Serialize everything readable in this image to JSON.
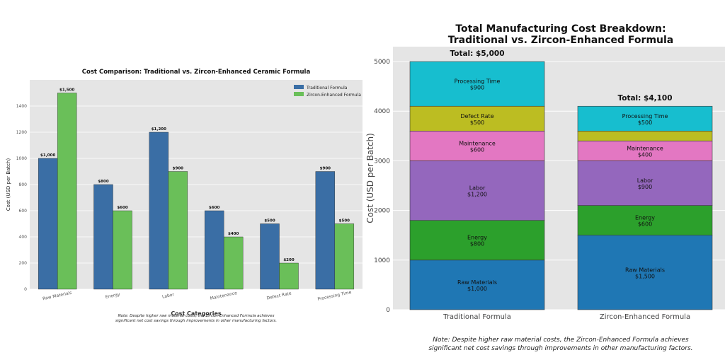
{
  "chart_data": [
    {
      "type": "bar",
      "title": "Cost Comparison: Traditional vs. Zircon-Enhanced Ceramic Formula",
      "xlabel": "Cost Categories",
      "ylabel": "Cost (USD per Batch)",
      "ylim": [
        0,
        1600
      ],
      "yticks": [
        0,
        200,
        400,
        600,
        800,
        1000,
        1200,
        1400
      ],
      "grid": true,
      "legend_position": "top-right",
      "categories": [
        "Raw Materials",
        "Energy",
        "Labor",
        "Maintenance",
        "Defect Rate",
        "Processing Time"
      ],
      "series": [
        {
          "name": "Traditional Formula",
          "color": "#3a6ea5",
          "values": [
            1000,
            800,
            1200,
            600,
            500,
            900
          ],
          "labels": [
            "$1,000",
            "$800",
            "$1,200",
            "$600",
            "$500",
            "$900"
          ]
        },
        {
          "name": "Zircon-Enhanced Formula",
          "color": "#6abf59",
          "values": [
            1500,
            600,
            900,
            400,
            200,
            500
          ],
          "labels": [
            "$1,500",
            "$600",
            "$900",
            "$400",
            "$200",
            "$500"
          ]
        }
      ],
      "note": [
        "Note: Despite higher raw material costs, the Zircon-Enhanced Formula achieves",
        "significant net cost savings through improvements in other manufacturing factors."
      ]
    },
    {
      "type": "bar",
      "stacked": true,
      "title": [
        "Total Manufacturing Cost Breakdown:",
        "Traditional vs. Zircon-Enhanced Formula"
      ],
      "ylabel": "Cost (USD per Batch)",
      "ylim": [
        0,
        5300
      ],
      "yticks": [
        0,
        1000,
        2000,
        3000,
        4000,
        5000
      ],
      "grid": true,
      "categories": [
        "Traditional Formula",
        "Zircon-Enhanced Formula"
      ],
      "totals": [
        "Total: $5,000",
        "Total: $4,100"
      ],
      "series": [
        {
          "name": "Raw Materials",
          "color": "#1f77b4",
          "values": [
            1000,
            1500
          ],
          "labels": [
            "$1,000",
            "$1,500"
          ]
        },
        {
          "name": "Energy",
          "color": "#2ca02c",
          "values": [
            800,
            600
          ],
          "labels": [
            "$800",
            "$600"
          ]
        },
        {
          "name": "Labor",
          "color": "#9467bd",
          "values": [
            1200,
            900
          ],
          "labels": [
            "$1,200",
            "$900"
          ]
        },
        {
          "name": "Maintenance",
          "color": "#e377c2",
          "values": [
            600,
            400
          ],
          "labels": [
            "$600",
            "$400"
          ]
        },
        {
          "name": "Defect Rate",
          "color": "#bcbd22",
          "values": [
            500,
            200
          ],
          "labels": [
            "$500",
            ""
          ]
        },
        {
          "name": "Processing Time",
          "color": "#17becf",
          "values": [
            900,
            500
          ],
          "labels": [
            "$900",
            "$500"
          ]
        }
      ],
      "note": [
        "Note: Despite higher raw material costs, the Zircon-Enhanced Formula achieves",
        "significant net cost savings through improvements in other manufacturing factors."
      ]
    }
  ]
}
